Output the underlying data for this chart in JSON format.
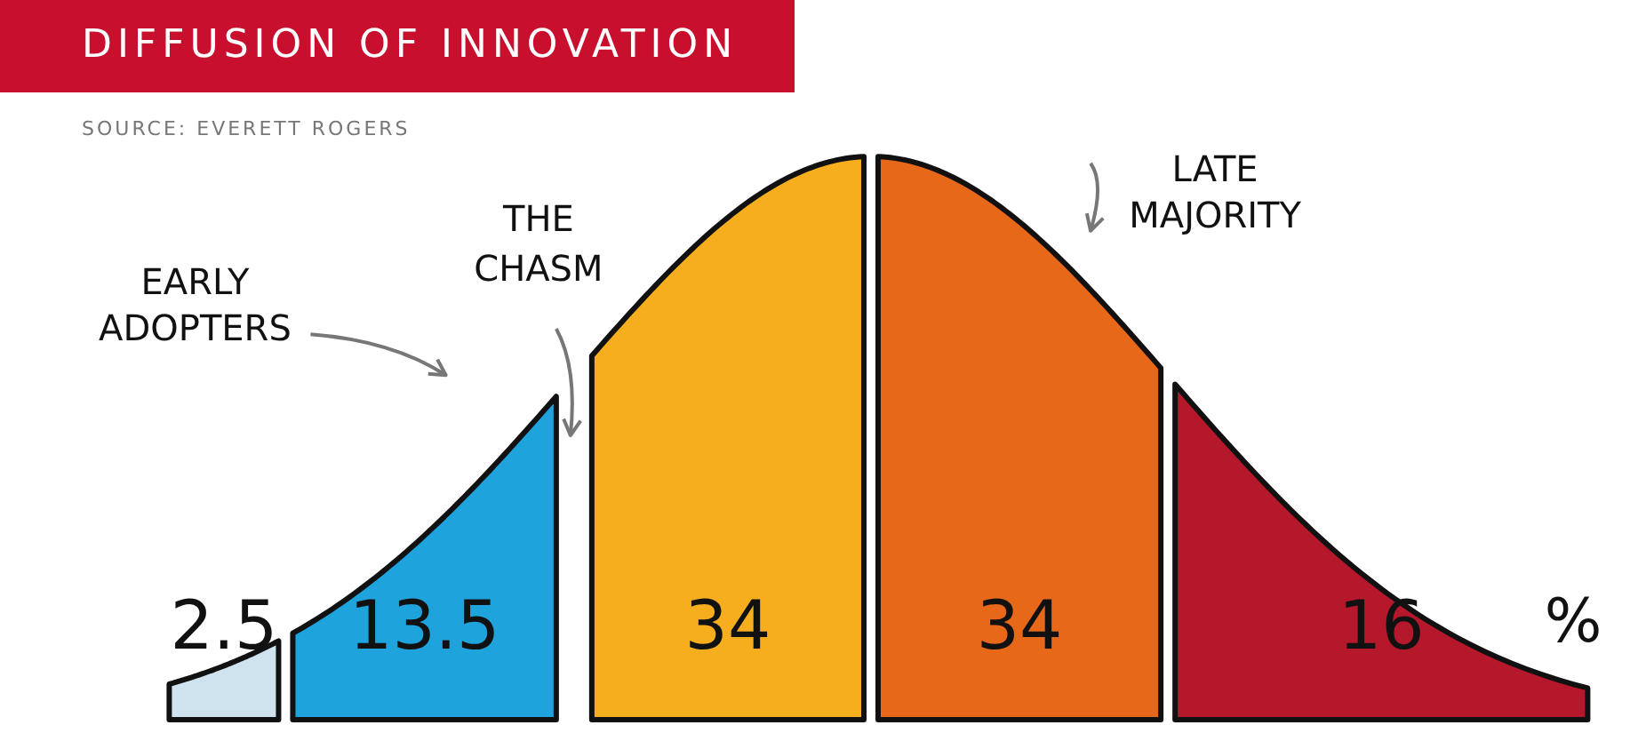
{
  "chart_data": {
    "type": "other",
    "title": "DIFFUSION OF INNOVATION",
    "categories": [
      null,
      "EARLY ADOPTERS",
      null,
      "LATE MAJORITY",
      null
    ],
    "values": [
      2.5,
      13.5,
      34,
      34,
      16
    ],
    "colors": [
      "#cfe3ee",
      "#1ea3dc",
      "#f6ae1e",
      "#e8681a",
      "#b5182b"
    ],
    "data_labels": true,
    "annotations": [
      "SOURCE: EVERETT ROGERS",
      "THE CHASM",
      "%"
    ]
  }
}
